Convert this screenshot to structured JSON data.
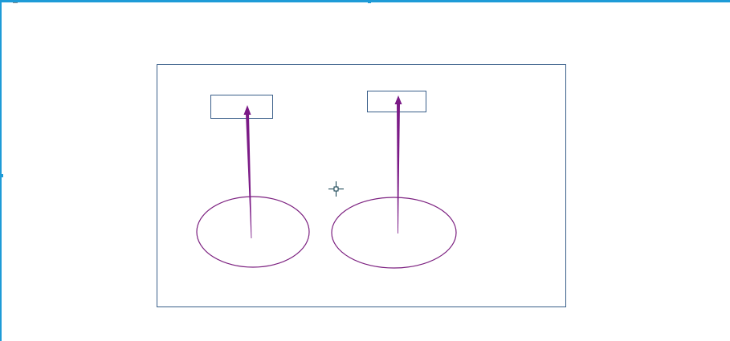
{
  "colors": {
    "selection": "#1e9bd7",
    "frame_stroke": "#3a5f8a",
    "box_stroke": "#3a5f8a",
    "ellipse_stroke": "#7b1f7f",
    "arrow": "#7b1a86",
    "cursor": "#0b3a4a"
  },
  "cursor": {
    "icon": "crosshair-cursor-icon"
  }
}
